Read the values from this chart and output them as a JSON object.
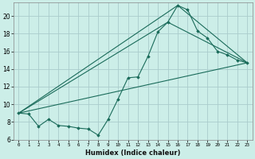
{
  "xlabel": "Humidex (Indice chaleur)",
  "background_color": "#cceee8",
  "grid_color": "#aacccc",
  "line_color": "#1a6b5a",
  "xlim": [
    -0.5,
    23.5
  ],
  "ylim": [
    6,
    21.5
  ],
  "xticks": [
    0,
    1,
    2,
    3,
    4,
    5,
    6,
    7,
    8,
    9,
    10,
    11,
    12,
    13,
    14,
    15,
    16,
    17,
    18,
    19,
    20,
    21,
    22,
    23
  ],
  "yticks": [
    6,
    8,
    10,
    12,
    14,
    16,
    18,
    20
  ],
  "series1_x": [
    0,
    1,
    2,
    3,
    4,
    5,
    6,
    7,
    8,
    9,
    10,
    11,
    12,
    13,
    14,
    15,
    16,
    17,
    18,
    19,
    20,
    21,
    22,
    23
  ],
  "series1_y": [
    9.0,
    8.9,
    7.5,
    8.3,
    7.6,
    7.5,
    7.3,
    7.2,
    6.5,
    8.3,
    10.6,
    13.0,
    13.1,
    15.4,
    18.2,
    19.3,
    21.2,
    20.7,
    18.3,
    17.5,
    16.0,
    15.6,
    15.0,
    14.7
  ],
  "series2_x": [
    0,
    23
  ],
  "series2_y": [
    9.0,
    14.7
  ],
  "series3_x": [
    0,
    15,
    23
  ],
  "series3_y": [
    9.0,
    19.3,
    14.7
  ],
  "series4_x": [
    0,
    16,
    23
  ],
  "series4_y": [
    9.0,
    21.2,
    14.7
  ]
}
